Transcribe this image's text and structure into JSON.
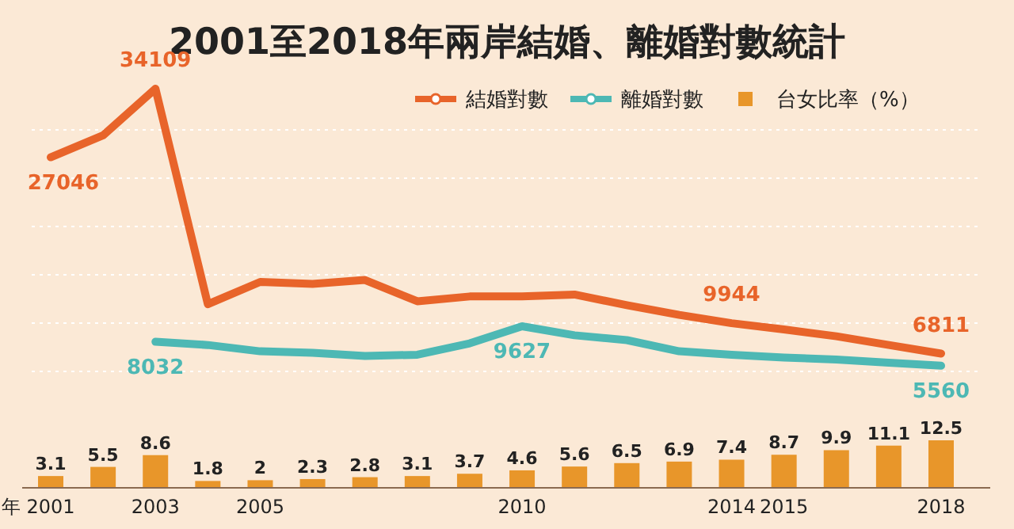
{
  "chart_data": [
    {
      "type": "line",
      "title": "2001至2018年兩岸結婚、離婚對數統計",
      "categories": [
        null,
        null,
        null,
        null,
        null,
        null,
        null,
        null,
        null,
        null,
        null,
        null,
        null,
        null,
        null,
        null,
        null,
        null
      ],
      "series": [
        {
          "name": "結婚對數",
          "color": "#e8642a",
          "values": [
            27046,
            29300,
            34109,
            11900,
            14200,
            14000,
            14400,
            12200,
            12700,
            12700,
            12900,
            11800,
            10800,
            9944,
            9300,
            8600,
            7700,
            6811
          ],
          "value_labels": [
            "27046",
            null,
            "34109",
            null,
            null,
            null,
            null,
            null,
            null,
            null,
            null,
            null,
            null,
            "9944",
            null,
            null,
            null,
            "6811"
          ]
        },
        {
          "name": "離婚對數",
          "color": "#4db8b4",
          "values": [
            null,
            null,
            8032,
            7700,
            7050,
            6900,
            6560,
            6700,
            7870,
            9627,
            8700,
            8200,
            7050,
            6700,
            6400,
            6200,
            5880,
            5560
          ],
          "value_labels": [
            null,
            null,
            "8032",
            null,
            null,
            null,
            null,
            null,
            null,
            "9627",
            null,
            null,
            null,
            null,
            null,
            null,
            null,
            "5560"
          ]
        }
      ],
      "grid": "y",
      "legend": "top right"
    },
    {
      "type": "bar",
      "xlabel": "年",
      "categories": [
        "2001",
        null,
        "2003",
        null,
        "2005",
        null,
        null,
        null,
        null,
        "2010",
        null,
        null,
        null,
        "2014",
        "2015",
        null,
        null,
        "2018"
      ],
      "series": [
        {
          "name": "台女比率（%）",
          "color": "#e8962a",
          "values": [
            3.1,
            5.5,
            8.6,
            1.8,
            2,
            2.3,
            2.8,
            3.1,
            3.7,
            4.6,
            5.6,
            6.5,
            6.9,
            7.4,
            8.7,
            9.9,
            11.1,
            12.5
          ]
        }
      ],
      "data_labels": true,
      "legend": "top right"
    }
  ]
}
